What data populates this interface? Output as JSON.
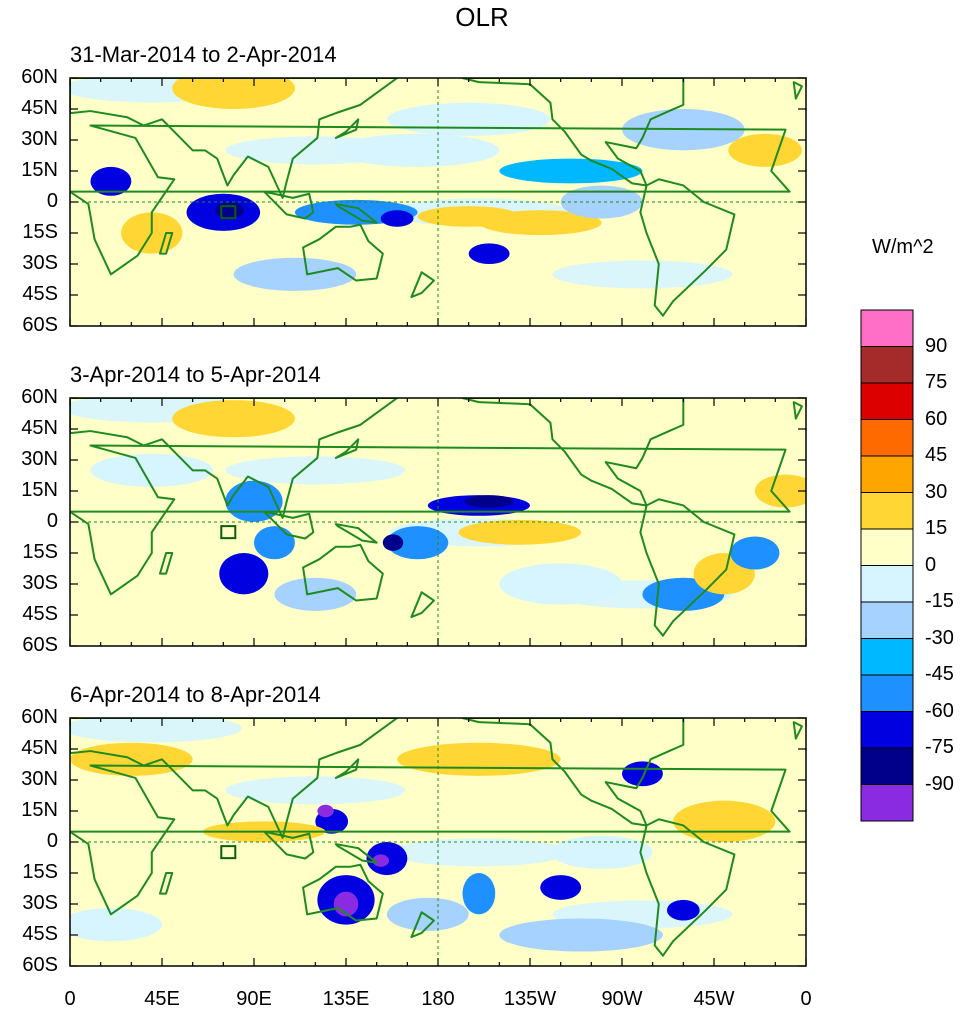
{
  "title": "OLR",
  "panels": [
    {
      "title": "31-Mar-2014 to 2-Apr-2014"
    },
    {
      "title": "3-Apr-2014 to 5-Apr-2014"
    },
    {
      "title": "6-Apr-2014 to 8-Apr-2014"
    }
  ],
  "lat_labels": [
    "60N",
    "45N",
    "30N",
    "15N",
    "0",
    "15S",
    "30S",
    "45S",
    "60S"
  ],
  "lon_labels": [
    "0",
    "45E",
    "90E",
    "135E",
    "180",
    "135W",
    "90W",
    "45W",
    "0"
  ],
  "colorbar": {
    "unit_label": "W/m^2",
    "labels": [
      "90",
      "75",
      "60",
      "45",
      "30",
      "15",
      "0",
      "-15",
      "-30",
      "-45",
      "-60",
      "-75",
      "-90"
    ],
    "colors": [
      "#ff6ec7",
      "#a52a2a",
      "#dd0000",
      "#ff6a00",
      "#ffa500",
      "#ffd633",
      "#ffffc8",
      "#d6f5ff",
      "#a6d2ff",
      "#00b8ff",
      "#1e90ff",
      "#0000e0",
      "#00008b",
      "#8a2be2"
    ]
  },
  "anomaly_palette": {
    "warm": "#ffd633",
    "strong_warm": "#ffa500",
    "neutral_pos": "#ffffc8",
    "neutral_neg": "#d6f5ff",
    "cool": "#a6d2ff",
    "cooler": "#00b8ff",
    "cold": "#1e90ff",
    "very_cold": "#0000e0",
    "extreme": "#00008b",
    "peak": "#8a2be2",
    "land_outline": "#1f8a1f"
  }
}
